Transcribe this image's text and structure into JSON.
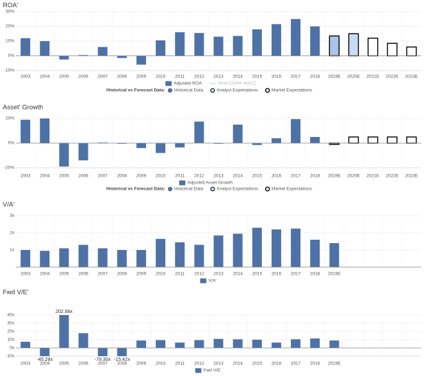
{
  "chart_data": [
    {
      "type": "bar",
      "title": "ROA'",
      "categories": [
        "2003",
        "2004",
        "2005",
        "2006",
        "2007",
        "2008",
        "2009",
        "2010",
        "2011",
        "2012",
        "2013",
        "2014",
        "2015",
        "2016",
        "2017",
        "2018",
        "2019E",
        "2020E",
        "2021E",
        "2022E",
        "2023E"
      ],
      "series": [
        {
          "name": "Adjusted ROA",
          "color": "#4e72a6",
          "values": [
            12,
            10,
            -2.5,
            0.5,
            6,
            -1.5,
            -6,
            10.5,
            16,
            15.5,
            13,
            13.5,
            18,
            21.5,
            25,
            20,
            13.5,
            15,
            12,
            8.5,
            6
          ],
          "colors": [
            "#4e72a6",
            "#4e72a6",
            "#4e72a6",
            "#4e72a6",
            "#4e72a6",
            "#4e72a6",
            "#4e72a6",
            "#4e72a6",
            "#4e72a6",
            "#4e72a6",
            "#4e72a6",
            "#4e72a6",
            "#4e72a6",
            "#4e72a6",
            "#4e72a6",
            "#4e72a6",
            "#a9c6ea",
            "#c9dcf3",
            "#ffffff",
            "#ffffff",
            "#ffffff"
          ],
          "edgecolors": [
            null,
            null,
            null,
            null,
            null,
            null,
            null,
            null,
            null,
            null,
            null,
            null,
            null,
            null,
            null,
            null,
            "#000000",
            "#000000",
            "#000000",
            "#000000",
            "#000000"
          ]
        },
        {
          "name": "Real CAPM WACC",
          "color": "#cccccc",
          "style": "line",
          "values": [
            null,
            null,
            null,
            null,
            null,
            null,
            null,
            null,
            null,
            null,
            null,
            null,
            null,
            null,
            null,
            null,
            null,
            null,
            null,
            null,
            null
          ]
        }
      ],
      "ylim": [
        -10,
        30
      ],
      "yticks": [
        {
          "value": -10,
          "label": "-10%"
        },
        {
          "value": 0,
          "label": "0%"
        },
        {
          "value": 10,
          "label": "10%"
        },
        {
          "value": 20,
          "label": "20%"
        },
        {
          "value": 30,
          "label": "30%"
        }
      ],
      "grid": true,
      "forecast_legend": {
        "title": "Historical vs Forecast Data:",
        "items": [
          {
            "name": "Historical Data",
            "color": "#4e72a6"
          },
          {
            "name": "Analyst Expectations",
            "color": "#c9dcf3"
          },
          {
            "name": "Market Expectations",
            "color": "#ffffff"
          }
        ]
      }
    },
    {
      "type": "bar",
      "title": "Asset' Growth",
      "categories": [
        "2003",
        "2004",
        "2005",
        "2006",
        "2007",
        "2008",
        "2009",
        "2010",
        "2011",
        "2012",
        "2013",
        "2014",
        "2015",
        "2016",
        "2017",
        "2018",
        "2019E",
        "2020E",
        "2021E",
        "2022E",
        "2023E"
      ],
      "series": [
        {
          "name": "Adjusted Asset Growth",
          "color": "#4e72a6",
          "values": [
            19,
            20,
            -19,
            -14,
            0.5,
            -0.5,
            -4,
            -8,
            -3.5,
            17.5,
            -0.5,
            15,
            -1.5,
            4,
            19.5,
            5,
            -1,
            5,
            5,
            5,
            5
          ],
          "colors": [
            "#4e72a6",
            "#4e72a6",
            "#4e72a6",
            "#4e72a6",
            "#4e72a6",
            "#4e72a6",
            "#4e72a6",
            "#4e72a6",
            "#4e72a6",
            "#4e72a6",
            "#4e72a6",
            "#4e72a6",
            "#4e72a6",
            "#4e72a6",
            "#4e72a6",
            "#4e72a6",
            "#ffffff",
            "#ffffff",
            "#ffffff",
            "#ffffff",
            "#ffffff"
          ],
          "edgecolors": [
            null,
            null,
            null,
            null,
            null,
            null,
            null,
            null,
            null,
            null,
            null,
            null,
            null,
            null,
            null,
            null,
            "#000000",
            "#000000",
            "#000000",
            "#000000",
            "#000000"
          ]
        }
      ],
      "ylim": [
        -20,
        20
      ],
      "yticks": [
        {
          "value": -20,
          "label": "-20%"
        },
        {
          "value": 0,
          "label": "0%"
        },
        {
          "value": 20,
          "label": "20%"
        }
      ],
      "grid": true,
      "forecast_legend": {
        "title": "Historical vs Forecast Data:",
        "items": [
          {
            "name": "Historical Data",
            "color": "#4e72a6"
          },
          {
            "name": "Analyst Expectations",
            "color": "#c9dcf3"
          },
          {
            "name": "Market Expectations",
            "color": "#ffffff"
          }
        ]
      }
    },
    {
      "type": "bar",
      "title": "V/A'",
      "categories": [
        "2003",
        "2004",
        "2005",
        "2006",
        "2007",
        "2008",
        "2009",
        "2010",
        "2011",
        "2012",
        "2013",
        "2014",
        "2015",
        "2016",
        "2017",
        "2018",
        "2019E",
        null,
        null,
        null,
        null
      ],
      "series": [
        {
          "name": "V/A'",
          "color": "#4e72a6",
          "values": [
            1.0,
            0.95,
            1.1,
            1.3,
            1.1,
            1.0,
            1.0,
            1.65,
            1.45,
            1.3,
            1.85,
            1.95,
            2.3,
            2.2,
            2.25,
            1.6,
            1.4,
            null,
            null,
            null,
            null
          ]
        }
      ],
      "ylim": [
        0,
        3
      ],
      "yticks": [
        {
          "value": 1,
          "label": "1x"
        },
        {
          "value": 2,
          "label": "2x"
        },
        {
          "value": 3,
          "label": "3x"
        }
      ],
      "grid": true
    },
    {
      "type": "bar",
      "title": "Fwd V/E'",
      "categories": [
        "2003",
        "2004",
        "2005",
        "2006",
        "2007",
        "2008",
        "2009",
        "2010",
        "2011",
        "2012",
        "2013",
        "2014",
        "2015",
        "2016",
        "2017",
        "2018",
        "2019E",
        null,
        null,
        null,
        null
      ],
      "series": [
        {
          "name": "Fwd V/E'",
          "color": "#4e72a6",
          "values": [
            7.5,
            -45.28,
            202.68,
            18,
            -79.3,
            -15.42,
            9,
            9.5,
            6.5,
            9.5,
            11,
            10.5,
            10,
            6.5,
            10.5,
            11.5,
            9,
            null,
            null,
            null,
            null
          ],
          "value_labels": [
            null,
            "-45.28x",
            "202.68x",
            null,
            "-79.30x",
            "-15.42x",
            null,
            null,
            null,
            null,
            null,
            null,
            null,
            null,
            null,
            null,
            null,
            null,
            null,
            null,
            null
          ]
        }
      ],
      "ylim": [
        -10,
        40
      ],
      "yticks": [
        {
          "value": -10,
          "label": "-10x"
        },
        {
          "value": 0,
          "label": "0x"
        },
        {
          "value": 10,
          "label": "10x"
        },
        {
          "value": 20,
          "label": "20x"
        },
        {
          "value": 30,
          "label": "30x"
        },
        {
          "value": 40,
          "label": "40x"
        }
      ],
      "grid": true
    }
  ]
}
